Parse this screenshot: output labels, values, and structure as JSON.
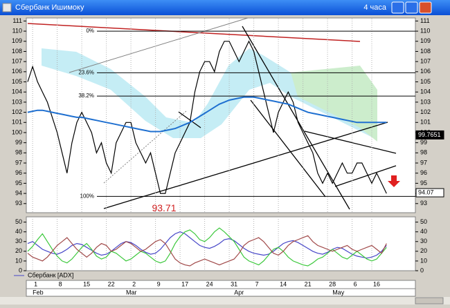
{
  "window": {
    "title": "Сбербанк Ишимоку",
    "timeframe": "4 часа"
  },
  "chart_data": [
    {
      "type": "line",
      "ylim": [
        92.1,
        111.3
      ],
      "yticks": [
        93,
        94,
        95,
        96,
        97,
        98,
        99,
        100,
        101,
        102,
        103,
        104,
        105,
        106,
        107,
        108,
        109,
        110,
        111
      ],
      "series": [
        {
          "color": "#000000",
          "values": [
            105,
            106.5,
            105,
            104,
            103,
            101.5,
            100,
            98,
            96,
            99,
            101,
            102,
            101,
            100,
            98,
            99,
            97,
            96,
            99,
            100,
            101,
            101,
            99,
            98,
            97,
            98,
            96,
            94,
            94,
            96,
            98,
            99,
            100,
            101,
            104,
            106,
            107,
            107,
            106,
            108,
            109,
            109,
            108,
            107,
            108,
            109,
            108,
            106,
            104,
            102,
            100,
            102,
            103,
            104,
            103,
            101,
            100,
            99,
            98,
            96,
            95,
            96,
            95,
            96,
            97,
            96,
            96,
            97,
            97,
            96,
            95,
            96,
            95,
            94
          ]
        },
        {
          "color": "#1e6fd0",
          "values": [
            102,
            102.1,
            102.2,
            102.2,
            102.1,
            102,
            101.9,
            101.8,
            101.7,
            101.6,
            101.5,
            101.5,
            101.4,
            101.3,
            101.2,
            101.1,
            101,
            100.9,
            100.8,
            100.7,
            100.6,
            100.5,
            100.4,
            100.3,
            100.2,
            100.1,
            100.1,
            100.1,
            100.2,
            100.3,
            100.4,
            100.6,
            100.8,
            101,
            101.3,
            101.6,
            101.9,
            102.2,
            102.5,
            102.8,
            103,
            103.2,
            103.3,
            103.4,
            103.5,
            103.5,
            103.5,
            103.4,
            103.3,
            103.2,
            103.1,
            103,
            102.9,
            102.8,
            102.6,
            102.4,
            102.2,
            102,
            101.9,
            101.8,
            101.7,
            101.6,
            101.5,
            101.4,
            101.3,
            101.2,
            101.1,
            101,
            101,
            101,
            101,
            101,
            101,
            101
          ]
        }
      ],
      "levels": [
        {
          "label": "0%",
          "value": 110
        },
        {
          "label": "23.6%",
          "value": 105.9
        },
        {
          "label": "38.2%",
          "value": 103.6
        },
        {
          "label": "100%",
          "value": 93.71
        }
      ],
      "price_tags": [
        99.7651,
        94.07
      ],
      "low_label": 93.71
    },
    {
      "type": "line",
      "ylim": [
        0,
        54
      ],
      "yticks": [
        0,
        10,
        20,
        30,
        40,
        50
      ],
      "categories": [
        null,
        "1",
        null,
        null,
        null,
        null,
        "8",
        null,
        null,
        null,
        null,
        "15",
        null,
        null,
        null,
        null,
        "22",
        null,
        null,
        null,
        null,
        "2",
        null,
        null,
        null,
        null,
        "9",
        null,
        null,
        null,
        null,
        "17",
        null,
        null,
        null,
        null,
        "24",
        null,
        null,
        null,
        null,
        "31",
        null,
        null,
        null,
        null,
        "7",
        null,
        null,
        null,
        null,
        "14",
        null,
        null,
        null,
        null,
        "21",
        null,
        null,
        null,
        null,
        "28",
        null,
        null,
        null,
        null,
        "6",
        null,
        null,
        null,
        "16",
        null,
        null,
        null
      ],
      "month_labels": [
        null,
        "Feb",
        null,
        null,
        null,
        null,
        null,
        null,
        null,
        null,
        null,
        null,
        null,
        null,
        null,
        null,
        null,
        null,
        null,
        null,
        "Mar",
        null,
        null,
        null,
        null,
        null,
        null,
        null,
        null,
        null,
        null,
        null,
        null,
        null,
        null,
        null,
        null,
        null,
        null,
        null,
        null,
        null,
        "Apr",
        null,
        null,
        null,
        null,
        null,
        null,
        null,
        null,
        null,
        null,
        null,
        null,
        null,
        null,
        null,
        null,
        null,
        null,
        null,
        "May",
        null,
        null,
        null,
        null,
        null,
        null,
        null,
        null,
        null,
        null,
        null
      ],
      "series": [
        {
          "name": "Сбербанк [ADX]",
          "color": "#4646c8",
          "values": [
            28,
            30,
            26,
            22,
            20,
            18,
            17,
            19,
            22,
            26,
            28,
            27,
            24,
            21,
            18,
            16,
            17,
            20,
            24,
            28,
            30,
            29,
            26,
            22,
            19,
            17,
            18,
            22,
            28,
            34,
            38,
            40,
            38,
            34,
            30,
            26,
            24,
            23,
            25,
            28,
            32,
            33,
            31,
            27,
            23,
            20,
            18,
            17,
            16,
            17,
            20,
            24,
            28,
            30,
            31,
            29,
            26,
            23,
            20,
            18,
            17,
            19,
            22,
            24,
            23,
            20,
            17,
            15,
            14,
            13,
            14,
            16,
            20,
            26
          ]
        },
        {
          "color": "#3cc83c",
          "values": [
            20,
            25,
            32,
            38,
            30,
            22,
            15,
            10,
            8,
            12,
            18,
            24,
            28,
            22,
            15,
            12,
            14,
            20,
            18,
            14,
            10,
            12,
            16,
            20,
            18,
            14,
            10,
            8,
            10,
            18,
            28,
            35,
            40,
            42,
            38,
            32,
            30,
            34,
            40,
            44,
            40,
            35,
            30,
            22,
            14,
            10,
            8,
            6,
            10,
            16,
            22,
            24,
            20,
            14,
            10,
            8,
            6,
            5,
            8,
            12,
            14,
            18,
            22,
            18,
            14,
            12,
            16,
            20,
            16,
            12,
            10,
            12,
            18,
            24
          ]
        },
        {
          "color": "#a04848",
          "values": [
            18,
            14,
            12,
            10,
            14,
            20,
            26,
            30,
            34,
            28,
            22,
            18,
            14,
            18,
            24,
            28,
            26,
            20,
            22,
            26,
            30,
            28,
            24,
            20,
            22,
            26,
            30,
            32,
            28,
            20,
            12,
            8,
            6,
            5,
            8,
            10,
            12,
            10,
            8,
            6,
            8,
            10,
            12,
            18,
            26,
            30,
            32,
            34,
            30,
            24,
            18,
            16,
            20,
            26,
            30,
            32,
            34,
            36,
            30,
            26,
            24,
            22,
            20,
            22,
            24,
            26,
            22,
            20,
            22,
            24,
            26,
            22,
            18,
            28
          ]
        }
      ]
    }
  ]
}
